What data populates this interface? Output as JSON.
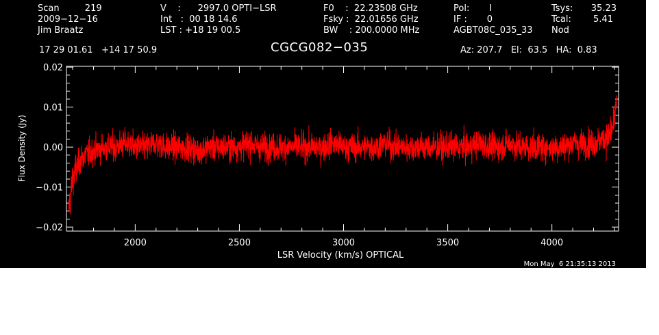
{
  "header": {
    "col1": [
      "Scan         219",
      "2009−12−16",
      "Jim Braatz"
    ],
    "col2": [
      "V    :      2997.0 OPTI−LSR",
      "Int   :  00 18 14.6",
      "LST : +18 19 00.5"
    ],
    "col3": [
      "F0    :  22.23508 GHz",
      "Fsky :  22.01656 GHz",
      "BW    : 200.0000 MHz"
    ],
    "col4": [
      "Pol:       I",
      "IF :       0",
      "AGBT08C_035_33"
    ],
    "col5_labels": [
      "Tsys:",
      "Tcal:",
      "Nod"
    ],
    "col5_values": [
      "35.23",
      "5.41",
      ""
    ],
    "coords": "17 29 01.61   +14 17 50.9",
    "source": "CGCG082−035",
    "pointing": "Az: 207.7   El:  63.5   HA:  0.83"
  },
  "timestamp": "Mon May  6 21:35:13 2013",
  "colors": {
    "background": "#000000",
    "trace": "#ff0000",
    "axes": "#ffffff"
  },
  "chart_data": {
    "type": "line",
    "title": "CGCG082−035",
    "xlabel": "LSR Velocity (km/s) OPTICAL",
    "ylabel": "Flux Density (Jy)",
    "xlim": [
      1670,
      4320
    ],
    "ylim": [
      -0.021,
      0.0202
    ],
    "xticks": [
      2000,
      2500,
      3000,
      3500,
      4000
    ],
    "xtick_labels": [
      "2000",
      "2500",
      "3000",
      "3500",
      "4000"
    ],
    "yticks": [
      -0.02,
      -0.01,
      0.0,
      0.01,
      0.02
    ],
    "ytick_labels": [
      "−0.02",
      "−0.01",
      "0.00",
      "0.01",
      "0.02"
    ],
    "grid": false,
    "series": [
      {
        "color": "#ff0000",
        "x": [
          1680,
          1700,
          1720,
          1740,
          1760,
          1800,
          1850,
          1900,
          1950,
          2000,
          2050,
          2100,
          2150,
          2200,
          2250,
          2300,
          2350,
          2400,
          2450,
          2500,
          2550,
          2600,
          2650,
          2700,
          2750,
          2800,
          2850,
          2900,
          2950,
          3000,
          3050,
          3100,
          3150,
          3200,
          3250,
          3300,
          3350,
          3400,
          3450,
          3500,
          3550,
          3600,
          3650,
          3700,
          3750,
          3800,
          3850,
          3900,
          3950,
          4000,
          4050,
          4100,
          4150,
          4200,
          4250,
          4280,
          4300,
          4310
        ],
        "y": [
          -0.016,
          -0.008,
          -0.005,
          -0.003,
          -0.002,
          -0.001,
          0.0,
          0.0,
          0.001,
          0.0,
          0.0,
          0.001,
          0.0,
          0.0,
          0.0,
          -0.001,
          0.0,
          0.0,
          0.0,
          0.0,
          0.001,
          0.0,
          0.0,
          0.0,
          0.0,
          0.0,
          0.0,
          0.0,
          0.001,
          0.0,
          0.0,
          0.0,
          0.0,
          0.001,
          0.0,
          0.0,
          0.0,
          0.0,
          0.0,
          0.0,
          0.0,
          0.0,
          0.001,
          0.0,
          0.0,
          0.001,
          0.0,
          0.0,
          0.0,
          0.0,
          0.0,
          0.001,
          0.001,
          0.001,
          0.002,
          0.003,
          0.006,
          0.013
        ],
        "noise_rms": 0.0035
      }
    ]
  }
}
